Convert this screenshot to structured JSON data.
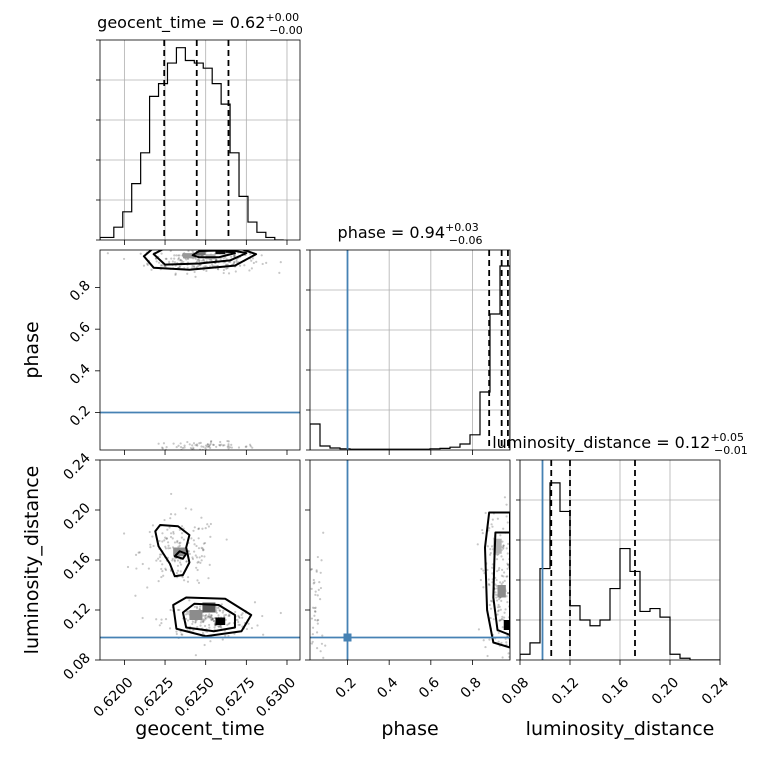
{
  "chart_data": {
    "type": "corner",
    "colors": {
      "truth": "#4682b4",
      "hist": "#000000",
      "grid": "#b0b0b0"
    },
    "parameters": [
      "geocent_time",
      "phase",
      "luminosity_distance"
    ],
    "titles": [
      {
        "param": "geocent_time",
        "label": "geocent_time = 0.62",
        "sup": "+0.00",
        "sub": "−0.00"
      },
      {
        "param": "phase",
        "label": "phase = 0.94",
        "sup": "+0.03",
        "sub": "−0.06"
      },
      {
        "param": "luminosity_distance",
        "label": "luminosity_distance = 0.12",
        "sup": "+0.05",
        "sub": "−0.01"
      }
    ],
    "axis_labels": {
      "x": [
        "geocent_time",
        "phase",
        "luminosity_distance"
      ],
      "y": [
        "phase",
        "luminosity_distance"
      ]
    },
    "ranges": {
      "geocent_time": [
        0.6185,
        0.6308
      ],
      "phase": [
        0.02,
        0.98
      ],
      "luminosity_distance": [
        0.08,
        0.24
      ]
    },
    "ticks": {
      "geocent_time": [
        {
          "v": 0.62,
          "label": "0.6200"
        },
        {
          "v": 0.6225,
          "label": "0.6225"
        },
        {
          "v": 0.625,
          "label": "0.6250"
        },
        {
          "v": 0.6275,
          "label": "0.6275"
        },
        {
          "v": 0.63,
          "label": "0.6300"
        }
      ],
      "phase": [
        {
          "v": 0.2,
          "label": "0.2"
        },
        {
          "v": 0.4,
          "label": "0.4"
        },
        {
          "v": 0.6,
          "label": "0.6"
        },
        {
          "v": 0.8,
          "label": "0.8"
        }
      ],
      "luminosity_distance": [
        {
          "v": 0.08,
          "label": "0.08"
        },
        {
          "v": 0.12,
          "label": "0.12"
        },
        {
          "v": 0.16,
          "label": "0.16"
        },
        {
          "v": 0.2,
          "label": "0.20"
        },
        {
          "v": 0.24,
          "label": "0.24"
        }
      ]
    },
    "truths": {
      "phase": 0.2,
      "luminosity_distance": 0.098
    },
    "quantiles": {
      "geocent_time": [
        0.62245,
        0.62445,
        0.6264
      ],
      "phase": [
        0.88,
        0.94,
        0.97
      ],
      "luminosity_distance": [
        0.105,
        0.12,
        0.172
      ]
    },
    "hist_1d": {
      "geocent_time": {
        "edges": [
          0.6185,
          0.61935,
          0.6199,
          0.62045,
          0.621,
          0.62155,
          0.6221,
          0.62265,
          0.6232,
          0.62375,
          0.6243,
          0.62485,
          0.6254,
          0.62595,
          0.6265,
          0.62705,
          0.6276,
          0.62815,
          0.6287,
          0.62925,
          0.6298
        ],
        "values": [
          0.5,
          2.5,
          5.5,
          11.0,
          17.0,
          28.0,
          30.5,
          34.5,
          37.5,
          35.0,
          34.5,
          33.5,
          30.5,
          26.5,
          17.0,
          8.5,
          3.5,
          1.5,
          0.5,
          0.0
        ],
        "ylim": [
          0,
          39
        ]
      },
      "phase": {
        "edges": [
          0.02,
          0.068,
          0.116,
          0.164,
          0.212,
          0.26,
          0.308,
          0.356,
          0.404,
          0.452,
          0.5,
          0.548,
          0.596,
          0.644,
          0.692,
          0.74,
          0.788,
          0.836,
          0.884,
          0.932,
          0.98
        ],
        "values": [
          6.5,
          1.0,
          0.5,
          0.3,
          0.2,
          0.2,
          0.2,
          0.2,
          0.2,
          0.2,
          0.2,
          0.2,
          0.3,
          0.4,
          0.7,
          1.5,
          3.8,
          14.5,
          34.0,
          46.0
        ],
        "ylim": [
          0,
          50
        ]
      },
      "luminosity_distance": {
        "edges": [
          0.08,
          0.088,
          0.096,
          0.104,
          0.112,
          0.12,
          0.128,
          0.136,
          0.144,
          0.152,
          0.16,
          0.168,
          0.176,
          0.184,
          0.192,
          0.2,
          0.208,
          0.216,
          0.224,
          0.232,
          0.24
        ],
        "values": [
          1.0,
          3.0,
          16.0,
          31.0,
          26.0,
          9.5,
          7.0,
          6.0,
          7.0,
          12.5,
          19.5,
          15.5,
          8.5,
          9.0,
          7.5,
          1.0,
          0.3,
          0.0,
          0.0,
          0.0
        ],
        "ylim": [
          0,
          35
        ]
      }
    },
    "hist_2d": [
      {
        "x": "geocent_time",
        "y": "phase",
        "clusters": [
          {
            "cx": 0.6249,
            "cy": 0.93,
            "sx": 0.0017,
            "sy": 0.03,
            "n": 260
          },
          {
            "cx": 0.6249,
            "cy": 0.035,
            "sx": 0.0016,
            "sy": 0.012,
            "n": 80
          }
        ],
        "dark_cells": [
          {
            "x": 0.6256,
            "y": 0.96,
            "w": 0.0006,
            "h": 0.025,
            "shade": 0.05
          },
          {
            "x": 0.6262,
            "y": 0.965,
            "w": 0.0006,
            "h": 0.02,
            "shade": 0.15
          },
          {
            "x": 0.6244,
            "y": 0.955,
            "w": 0.0006,
            "h": 0.02,
            "shade": 0.45
          },
          {
            "x": 0.6236,
            "y": 0.94,
            "w": 0.0008,
            "h": 0.025,
            "shade": 0.6
          },
          {
            "x": 0.625,
            "y": 0.935,
            "w": 0.0006,
            "h": 0.025,
            "shade": 0.7
          }
        ],
        "contours": [
          [
            [
              0.6218,
              0.96
            ],
            [
              0.6224,
              0.985
            ],
            [
              0.6262,
              0.985
            ],
            [
              0.6275,
              0.965
            ],
            [
              0.6265,
              0.93
            ],
            [
              0.6246,
              0.915
            ],
            [
              0.6225,
              0.91
            ]
          ],
          [
            [
              0.6212,
              0.95
            ],
            [
              0.6218,
              0.99
            ],
            [
              0.627,
              0.99
            ],
            [
              0.6281,
              0.96
            ],
            [
              0.6268,
              0.905
            ],
            [
              0.624,
              0.885
            ],
            [
              0.6218,
              0.895
            ]
          ],
          [
            [
              0.6242,
              0.955
            ],
            [
              0.6246,
              0.975
            ],
            [
              0.6262,
              0.978
            ],
            [
              0.6268,
              0.965
            ],
            [
              0.6258,
              0.945
            ],
            [
              0.6246,
              0.945
            ]
          ]
        ]
      },
      {
        "x": "geocent_time",
        "y": "luminosity_distance",
        "clusters": [
          {
            "cx": 0.6234,
            "cy": 0.167,
            "sx": 0.0012,
            "sy": 0.014,
            "n": 160
          },
          {
            "cx": 0.6252,
            "cy": 0.112,
            "sx": 0.0014,
            "sy": 0.007,
            "n": 200
          }
        ],
        "dark_cells": [
          {
            "x": 0.6248,
            "y": 0.118,
            "w": 0.0008,
            "h": 0.008,
            "shade": 0.35
          },
          {
            "x": 0.6256,
            "y": 0.108,
            "w": 0.0006,
            "h": 0.006,
            "shade": 0.0
          },
          {
            "x": 0.624,
            "y": 0.112,
            "w": 0.0008,
            "h": 0.008,
            "shade": 0.55
          },
          {
            "x": 0.623,
            "y": 0.163,
            "w": 0.0008,
            "h": 0.007,
            "shade": 0.55
          }
        ],
        "contours": [
          [
            [
              0.6219,
              0.183
            ],
            [
              0.6222,
              0.188
            ],
            [
              0.6233,
              0.187
            ],
            [
              0.624,
              0.18
            ],
            [
              0.6238,
              0.17
            ],
            [
              0.624,
              0.158
            ],
            [
              0.6236,
              0.148
            ],
            [
              0.6231,
              0.147
            ],
            [
              0.6228,
              0.157
            ],
            [
              0.6221,
              0.171
            ]
          ],
          [
            [
              0.6236,
              0.118
            ],
            [
              0.6243,
              0.125
            ],
            [
              0.6258,
              0.124
            ],
            [
              0.6268,
              0.116
            ],
            [
              0.6268,
              0.106
            ],
            [
              0.6255,
              0.103
            ],
            [
              0.6238,
              0.106
            ]
          ],
          [
            [
              0.623,
              0.124
            ],
            [
              0.6238,
              0.13
            ],
            [
              0.6262,
              0.129
            ],
            [
              0.6278,
              0.116
            ],
            [
              0.6272,
              0.103
            ],
            [
              0.625,
              0.099
            ],
            [
              0.6232,
              0.105
            ]
          ],
          [
            [
              0.6231,
              0.163
            ],
            [
              0.6234,
              0.167
            ],
            [
              0.6238,
              0.165
            ],
            [
              0.6236,
              0.161
            ]
          ]
        ]
      },
      {
        "x": "phase",
        "y": "luminosity_distance",
        "clusters": [
          {
            "cx": 0.93,
            "cy": 0.14,
            "sx": 0.04,
            "sy": 0.03,
            "n": 200
          },
          {
            "cx": 0.05,
            "cy": 0.12,
            "sx": 0.02,
            "sy": 0.03,
            "n": 50
          }
        ],
        "dark_cells": [
          {
            "x": 0.95,
            "y": 0.104,
            "w": 0.03,
            "h": 0.008,
            "shade": 0.0
          },
          {
            "x": 0.92,
            "y": 0.13,
            "w": 0.04,
            "h": 0.01,
            "shade": 0.55
          },
          {
            "x": 0.9,
            "y": 0.165,
            "w": 0.04,
            "h": 0.012,
            "shade": 0.7
          }
        ],
        "contours": [
          [
            [
              0.88,
              0.198
            ],
            [
              0.98,
              0.198
            ],
            [
              0.98,
              0.09
            ],
            [
              0.9,
              0.094
            ],
            [
              0.87,
              0.12
            ],
            [
              0.86,
              0.17
            ]
          ],
          [
            [
              0.91,
              0.182
            ],
            [
              0.98,
              0.182
            ],
            [
              0.98,
              0.1
            ],
            [
              0.92,
              0.104
            ],
            [
              0.9,
              0.13
            ],
            [
              0.905,
              0.16
            ]
          ]
        ]
      }
    ]
  }
}
